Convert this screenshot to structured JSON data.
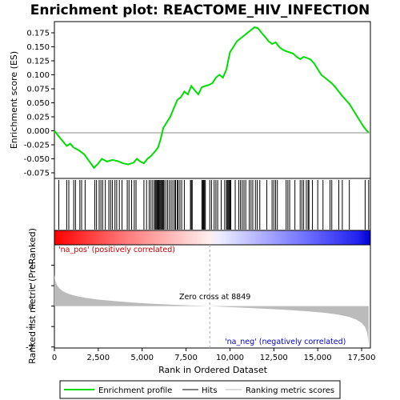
{
  "chart_data": {
    "type": "line",
    "title": "Enrichment plot: REACTOME_HIV_INFECTION",
    "top_panel": {
      "ylabel": "Enrichment score (ES)",
      "ylim": [
        -0.085,
        0.195
      ],
      "yticks": [
        "0.175",
        "0.150",
        "0.125",
        "0.100",
        "0.075",
        "0.050",
        "0.025",
        "0.000",
        "-0.025",
        "-0.050",
        "-0.075"
      ],
      "ytick_values": [
        0.175,
        0.15,
        0.125,
        0.1,
        0.075,
        0.05,
        0.025,
        0.0,
        -0.025,
        -0.05,
        -0.075
      ],
      "series": [
        {
          "name": "Enrichment profile",
          "color": "#00dd00",
          "x": [
            0,
            300,
            700,
            900,
            1100,
            1400,
            1700,
            2000,
            2250,
            2450,
            2700,
            3000,
            3300,
            3600,
            3900,
            4200,
            4500,
            4700,
            4900,
            5100,
            5300,
            5500,
            5700,
            5900,
            6050,
            6200,
            6400,
            6600,
            6800,
            7000,
            7200,
            7400,
            7600,
            7800,
            8000,
            8200,
            8400,
            8600,
            8800,
            9000,
            9200,
            9400,
            9600,
            9800,
            10000,
            10200,
            10400,
            10600,
            10800,
            11000,
            11200,
            11400,
            11600,
            11800,
            12000,
            12200,
            12400,
            12600,
            12800,
            13000,
            13200,
            13400,
            13600,
            13800,
            14000,
            14200,
            14400,
            14600,
            14800,
            15000,
            15200,
            15400,
            15600,
            15800,
            16000,
            16200,
            16400,
            16600,
            16800,
            17000,
            17200,
            17400,
            17600,
            17800,
            17900
          ],
          "y": [
            0.0,
            -0.012,
            -0.027,
            -0.023,
            -0.03,
            -0.035,
            -0.042,
            -0.055,
            -0.066,
            -0.06,
            -0.05,
            -0.055,
            -0.052,
            -0.054,
            -0.058,
            -0.06,
            -0.057,
            -0.05,
            -0.055,
            -0.058,
            -0.05,
            -0.045,
            -0.038,
            -0.03,
            -0.015,
            0.005,
            0.015,
            0.025,
            0.04,
            0.055,
            0.06,
            0.07,
            0.065,
            0.08,
            0.072,
            0.065,
            0.078,
            0.08,
            0.082,
            0.085,
            0.095,
            0.1,
            0.095,
            0.11,
            0.14,
            0.15,
            0.16,
            0.165,
            0.17,
            0.175,
            0.18,
            0.185,
            0.183,
            0.175,
            0.168,
            0.16,
            0.155,
            0.158,
            0.15,
            0.145,
            0.142,
            0.14,
            0.138,
            0.132,
            0.128,
            0.132,
            0.13,
            0.127,
            0.12,
            0.11,
            0.1,
            0.095,
            0.09,
            0.085,
            0.078,
            0.07,
            0.062,
            0.055,
            0.048,
            0.038,
            0.028,
            0.018,
            0.008,
            0.0,
            -0.003
          ]
        }
      ]
    },
    "hits_panel": {
      "legend_name": "Hits",
      "x": [
        250,
        700,
        820,
        1100,
        1200,
        1450,
        1550,
        1750,
        2300,
        2400,
        2550,
        2650,
        2750,
        2900,
        3100,
        3200,
        3300,
        3450,
        3550,
        3700,
        3850,
        4150,
        4250,
        4400,
        4550,
        4650,
        5100,
        5250,
        5400,
        5500,
        5600,
        5700,
        5750,
        5800,
        5850,
        5900,
        5950,
        6000,
        6050,
        6100,
        6150,
        6200,
        6250,
        6350,
        6450,
        6550,
        6650,
        6750,
        6850,
        6900,
        7000,
        7050,
        7150,
        7250,
        7400,
        7750,
        7800,
        7850,
        8400,
        8450,
        8500,
        8550,
        8600,
        8850,
        8950,
        9100,
        9200,
        9300,
        9500,
        9700,
        9800,
        9850,
        9900,
        9950,
        10000,
        10050,
        10300,
        10500,
        10600,
        10700,
        10800,
        10900,
        11100,
        11200,
        11300,
        11450,
        11550,
        11700,
        12100,
        12400,
        12500,
        12600,
        12700,
        13200,
        13300,
        13400,
        13700,
        14000,
        14100,
        14200,
        14350,
        14450,
        14500,
        14700,
        15000,
        15300,
        15700,
        15800,
        16200,
        16400,
        16800,
        17700,
        17900
      ]
    },
    "bottom_panel": {
      "ylabel": "Ranked list metric (PreRanked)",
      "xlabel": "Rank in Ordered Dataset",
      "xlim": [
        0,
        18000
      ],
      "ylim": [
        -2.05,
        3.0
      ],
      "xticks": [
        "0",
        "2,500",
        "5,000",
        "7,500",
        "10,000",
        "12,500",
        "15,000",
        "17,500"
      ],
      "xtick_values": [
        0,
        2500,
        5000,
        7500,
        10000,
        12500,
        15000,
        17500
      ],
      "yticks": [
        "2",
        "1",
        "0",
        "-1",
        "-2"
      ],
      "ytick_values": [
        2,
        1,
        0,
        -1,
        -2
      ],
      "legend_name": "Ranking metric scores",
      "metric_x": [
        0,
        50,
        150,
        300,
        500,
        800,
        1200,
        1800,
        2500,
        3500,
        4500,
        5500,
        6500,
        7500,
        8200,
        8849,
        9500,
        10500,
        11500,
        12500,
        13500,
        14500,
        15500,
        16200,
        16800,
        17200,
        17500,
        17700,
        17800,
        17870,
        17900
      ],
      "metric_y": [
        1.55,
        1.25,
        1.02,
        0.86,
        0.72,
        0.6,
        0.5,
        0.4,
        0.32,
        0.24,
        0.17,
        0.12,
        0.08,
        0.04,
        0.02,
        0.0,
        -0.03,
        -0.07,
        -0.11,
        -0.15,
        -0.2,
        -0.26,
        -0.34,
        -0.42,
        -0.53,
        -0.66,
        -0.82,
        -1.02,
        -1.25,
        -1.6,
        -1.92
      ],
      "zero_cross_label": "Zero cross at 8849",
      "zero_cross_x": 8849,
      "pos_label": "'na_pos' (positively correlated)",
      "neg_label": "'na_neg' (negatively correlated)"
    },
    "legend": [
      "Enrichment profile",
      "Hits",
      "Ranking metric scores"
    ],
    "colors": {
      "profile": "#00dd00",
      "hits": "#000000",
      "metric": "#bbbbbb",
      "pos_text": "#cc0000",
      "neg_text": "#0000cc",
      "zero_cross_line": "#aaaaaa"
    }
  }
}
